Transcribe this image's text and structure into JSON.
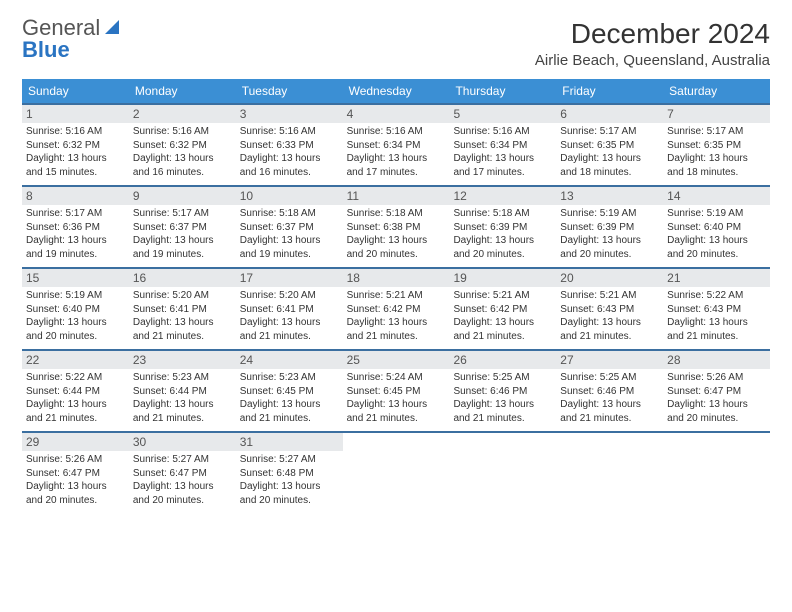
{
  "logo": {
    "word1": "General",
    "word2": "Blue"
  },
  "title": "December 2024",
  "subtitle": "Airlie Beach, Queensland, Australia",
  "calendar": {
    "type": "calendar-grid",
    "header_bg": "#3b8fd4",
    "header_text_color": "#ffffff",
    "week_divider_color": "#3b6fa0",
    "daynum_bg": "#e7e9eb",
    "cell_fontsize": 10,
    "dayheads": [
      "Sunday",
      "Monday",
      "Tuesday",
      "Wednesday",
      "Thursday",
      "Friday",
      "Saturday"
    ],
    "weeks": [
      [
        {
          "day": "1",
          "sunrise": "5:16 AM",
          "sunset": "6:32 PM",
          "day_h": "13",
          "day_m": "15"
        },
        {
          "day": "2",
          "sunrise": "5:16 AM",
          "sunset": "6:32 PM",
          "day_h": "13",
          "day_m": "16"
        },
        {
          "day": "3",
          "sunrise": "5:16 AM",
          "sunset": "6:33 PM",
          "day_h": "13",
          "day_m": "16"
        },
        {
          "day": "4",
          "sunrise": "5:16 AM",
          "sunset": "6:34 PM",
          "day_h": "13",
          "day_m": "17"
        },
        {
          "day": "5",
          "sunrise": "5:16 AM",
          "sunset": "6:34 PM",
          "day_h": "13",
          "day_m": "17"
        },
        {
          "day": "6",
          "sunrise": "5:17 AM",
          "sunset": "6:35 PM",
          "day_h": "13",
          "day_m": "18"
        },
        {
          "day": "7",
          "sunrise": "5:17 AM",
          "sunset": "6:35 PM",
          "day_h": "13",
          "day_m": "18"
        }
      ],
      [
        {
          "day": "8",
          "sunrise": "5:17 AM",
          "sunset": "6:36 PM",
          "day_h": "13",
          "day_m": "19"
        },
        {
          "day": "9",
          "sunrise": "5:17 AM",
          "sunset": "6:37 PM",
          "day_h": "13",
          "day_m": "19"
        },
        {
          "day": "10",
          "sunrise": "5:18 AM",
          "sunset": "6:37 PM",
          "day_h": "13",
          "day_m": "19"
        },
        {
          "day": "11",
          "sunrise": "5:18 AM",
          "sunset": "6:38 PM",
          "day_h": "13",
          "day_m": "20"
        },
        {
          "day": "12",
          "sunrise": "5:18 AM",
          "sunset": "6:39 PM",
          "day_h": "13",
          "day_m": "20"
        },
        {
          "day": "13",
          "sunrise": "5:19 AM",
          "sunset": "6:39 PM",
          "day_h": "13",
          "day_m": "20"
        },
        {
          "day": "14",
          "sunrise": "5:19 AM",
          "sunset": "6:40 PM",
          "day_h": "13",
          "day_m": "20"
        }
      ],
      [
        {
          "day": "15",
          "sunrise": "5:19 AM",
          "sunset": "6:40 PM",
          "day_h": "13",
          "day_m": "20"
        },
        {
          "day": "16",
          "sunrise": "5:20 AM",
          "sunset": "6:41 PM",
          "day_h": "13",
          "day_m": "21"
        },
        {
          "day": "17",
          "sunrise": "5:20 AM",
          "sunset": "6:41 PM",
          "day_h": "13",
          "day_m": "21"
        },
        {
          "day": "18",
          "sunrise": "5:21 AM",
          "sunset": "6:42 PM",
          "day_h": "13",
          "day_m": "21"
        },
        {
          "day": "19",
          "sunrise": "5:21 AM",
          "sunset": "6:42 PM",
          "day_h": "13",
          "day_m": "21"
        },
        {
          "day": "20",
          "sunrise": "5:21 AM",
          "sunset": "6:43 PM",
          "day_h": "13",
          "day_m": "21"
        },
        {
          "day": "21",
          "sunrise": "5:22 AM",
          "sunset": "6:43 PM",
          "day_h": "13",
          "day_m": "21"
        }
      ],
      [
        {
          "day": "22",
          "sunrise": "5:22 AM",
          "sunset": "6:44 PM",
          "day_h": "13",
          "day_m": "21"
        },
        {
          "day": "23",
          "sunrise": "5:23 AM",
          "sunset": "6:44 PM",
          "day_h": "13",
          "day_m": "21"
        },
        {
          "day": "24",
          "sunrise": "5:23 AM",
          "sunset": "6:45 PM",
          "day_h": "13",
          "day_m": "21"
        },
        {
          "day": "25",
          "sunrise": "5:24 AM",
          "sunset": "6:45 PM",
          "day_h": "13",
          "day_m": "21"
        },
        {
          "day": "26",
          "sunrise": "5:25 AM",
          "sunset": "6:46 PM",
          "day_h": "13",
          "day_m": "21"
        },
        {
          "day": "27",
          "sunrise": "5:25 AM",
          "sunset": "6:46 PM",
          "day_h": "13",
          "day_m": "21"
        },
        {
          "day": "28",
          "sunrise": "5:26 AM",
          "sunset": "6:47 PM",
          "day_h": "13",
          "day_m": "20"
        }
      ],
      [
        {
          "day": "29",
          "sunrise": "5:26 AM",
          "sunset": "6:47 PM",
          "day_h": "13",
          "day_m": "20"
        },
        {
          "day": "30",
          "sunrise": "5:27 AM",
          "sunset": "6:47 PM",
          "day_h": "13",
          "day_m": "20"
        },
        {
          "day": "31",
          "sunrise": "5:27 AM",
          "sunset": "6:48 PM",
          "day_h": "13",
          "day_m": "20"
        },
        null,
        null,
        null,
        null
      ]
    ]
  }
}
